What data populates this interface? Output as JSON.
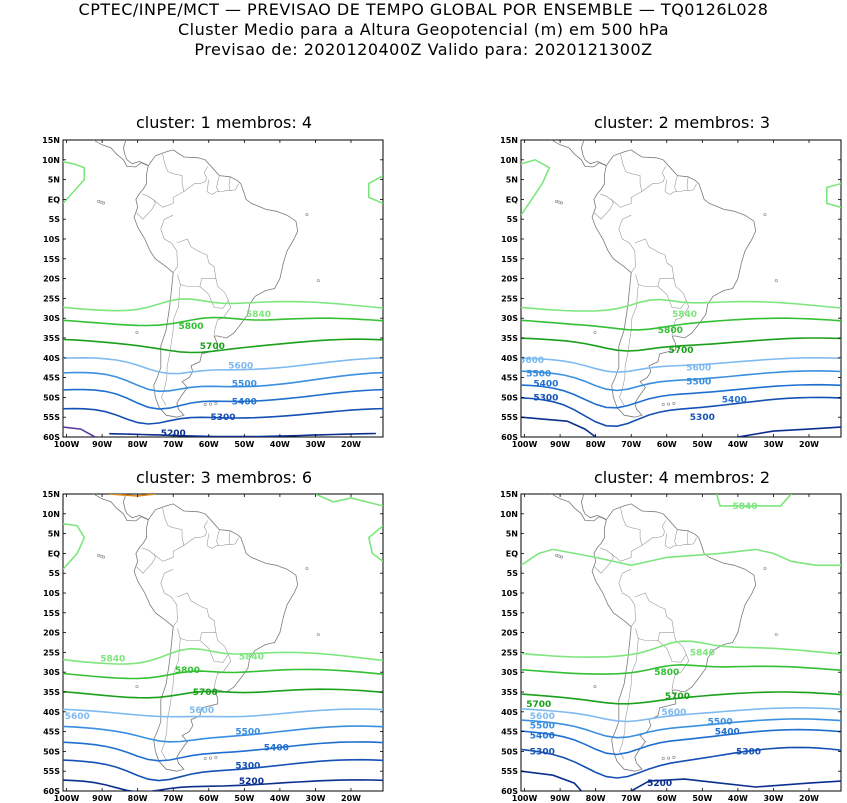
{
  "header": {
    "line1": "CPTEC/INPE/MCT — PREVISAO DE TEMPO GLOBAL POR ENSEMBLE — TQ0126L028",
    "line2": "Cluster Medio para a Altura Geopotencial (m) em 500 hPa",
    "line3": "Previsao de: 2020120400Z   Valido para: 2020121300Z"
  },
  "lat_ticks": [
    "15N",
    "10N",
    "5N",
    "EQ",
    "5S",
    "10S",
    "15S",
    "20S",
    "25S",
    "30S",
    "35S",
    "40S",
    "45S",
    "50S",
    "55S",
    "60S"
  ],
  "lon_ticks": [
    "100W",
    "90W",
    "80W",
    "70W",
    "60W",
    "50W",
    "40W",
    "30W",
    "20W"
  ],
  "contour_colors": {
    "5200": "#0a2f8f",
    "5300": "#1550b5",
    "5400": "#1f6fd0",
    "5500": "#3a8fe0",
    "5600": "#7fbaf0",
    "5700": "#1aa01a",
    "5800": "#33c033",
    "5840": "#7ee67e",
    "5100": "#5a3aa0",
    "5900": "#e08a1a"
  },
  "panels": [
    {
      "title": "cluster: 1   membros: 4",
      "labels": [
        {
          "text": "5840",
          "lon": -46,
          "lat": -29
        },
        {
          "text": "5800",
          "lon": -65,
          "lat": -32
        },
        {
          "text": "5700",
          "lon": -59,
          "lat": -37
        },
        {
          "text": "5600",
          "lon": -51,
          "lat": -42
        },
        {
          "text": "5500",
          "lon": -50,
          "lat": -46.5
        },
        {
          "text": "5400",
          "lon": -50,
          "lat": -51
        },
        {
          "text": "5300",
          "lon": -56,
          "lat": -55
        },
        {
          "text": "5200",
          "lon": -70,
          "lat": -59
        }
      ]
    },
    {
      "title": "cluster: 2   membros: 3",
      "labels": [
        {
          "text": "5840",
          "lon": -55,
          "lat": -29
        },
        {
          "text": "5800",
          "lon": -59,
          "lat": -33
        },
        {
          "text": "5700",
          "lon": -56,
          "lat": -38
        },
        {
          "text": "5600",
          "lon": -51,
          "lat": -42.5
        },
        {
          "text": "5500",
          "lon": -96,
          "lat": -44
        },
        {
          "text": "5500",
          "lon": -51,
          "lat": -46
        },
        {
          "text": "5400",
          "lon": -94,
          "lat": -46.5
        },
        {
          "text": "5400",
          "lon": -41,
          "lat": -50.5
        },
        {
          "text": "5300",
          "lon": -94,
          "lat": -50
        },
        {
          "text": "5300",
          "lon": -50,
          "lat": -55
        },
        {
          "text": "5600",
          "lon": -98,
          "lat": -40.5
        }
      ]
    },
    {
      "title": "cluster: 3   membros: 6",
      "labels": [
        {
          "text": "5840",
          "lon": -87,
          "lat": -26.5
        },
        {
          "text": "5840",
          "lon": -48,
          "lat": -26
        },
        {
          "text": "5800",
          "lon": -66,
          "lat": -29.5
        },
        {
          "text": "5700",
          "lon": -61,
          "lat": -35
        },
        {
          "text": "5600",
          "lon": -62,
          "lat": -39.5
        },
        {
          "text": "5600",
          "lon": -97,
          "lat": -41
        },
        {
          "text": "5500",
          "lon": -49,
          "lat": -45
        },
        {
          "text": "5400",
          "lon": -41,
          "lat": -49
        },
        {
          "text": "5300",
          "lon": -49,
          "lat": -53.5
        },
        {
          "text": "5200",
          "lon": -48,
          "lat": -57.5
        }
      ]
    },
    {
      "title": "cluster: 4   membros: 2",
      "labels": [
        {
          "text": "5840",
          "lon": -38,
          "lat": 12
        },
        {
          "text": "5840",
          "lon": -50,
          "lat": -25
        },
        {
          "text": "5800",
          "lon": -60,
          "lat": -30
        },
        {
          "text": "5700",
          "lon": -96,
          "lat": -38
        },
        {
          "text": "5700",
          "lon": -57,
          "lat": -36
        },
        {
          "text": "5600",
          "lon": -58,
          "lat": -40
        },
        {
          "text": "5600",
          "lon": -95,
          "lat": -41
        },
        {
          "text": "5500",
          "lon": -95,
          "lat": -43.5
        },
        {
          "text": "5500",
          "lon": -45,
          "lat": -42.5
        },
        {
          "text": "5400",
          "lon": -95,
          "lat": -46
        },
        {
          "text": "5400",
          "lon": -43,
          "lat": -45
        },
        {
          "text": "5300",
          "lon": -95,
          "lat": -50
        },
        {
          "text": "5300",
          "lon": -37,
          "lat": -50
        },
        {
          "text": "5200",
          "lon": -62,
          "lat": -58
        }
      ]
    }
  ]
}
